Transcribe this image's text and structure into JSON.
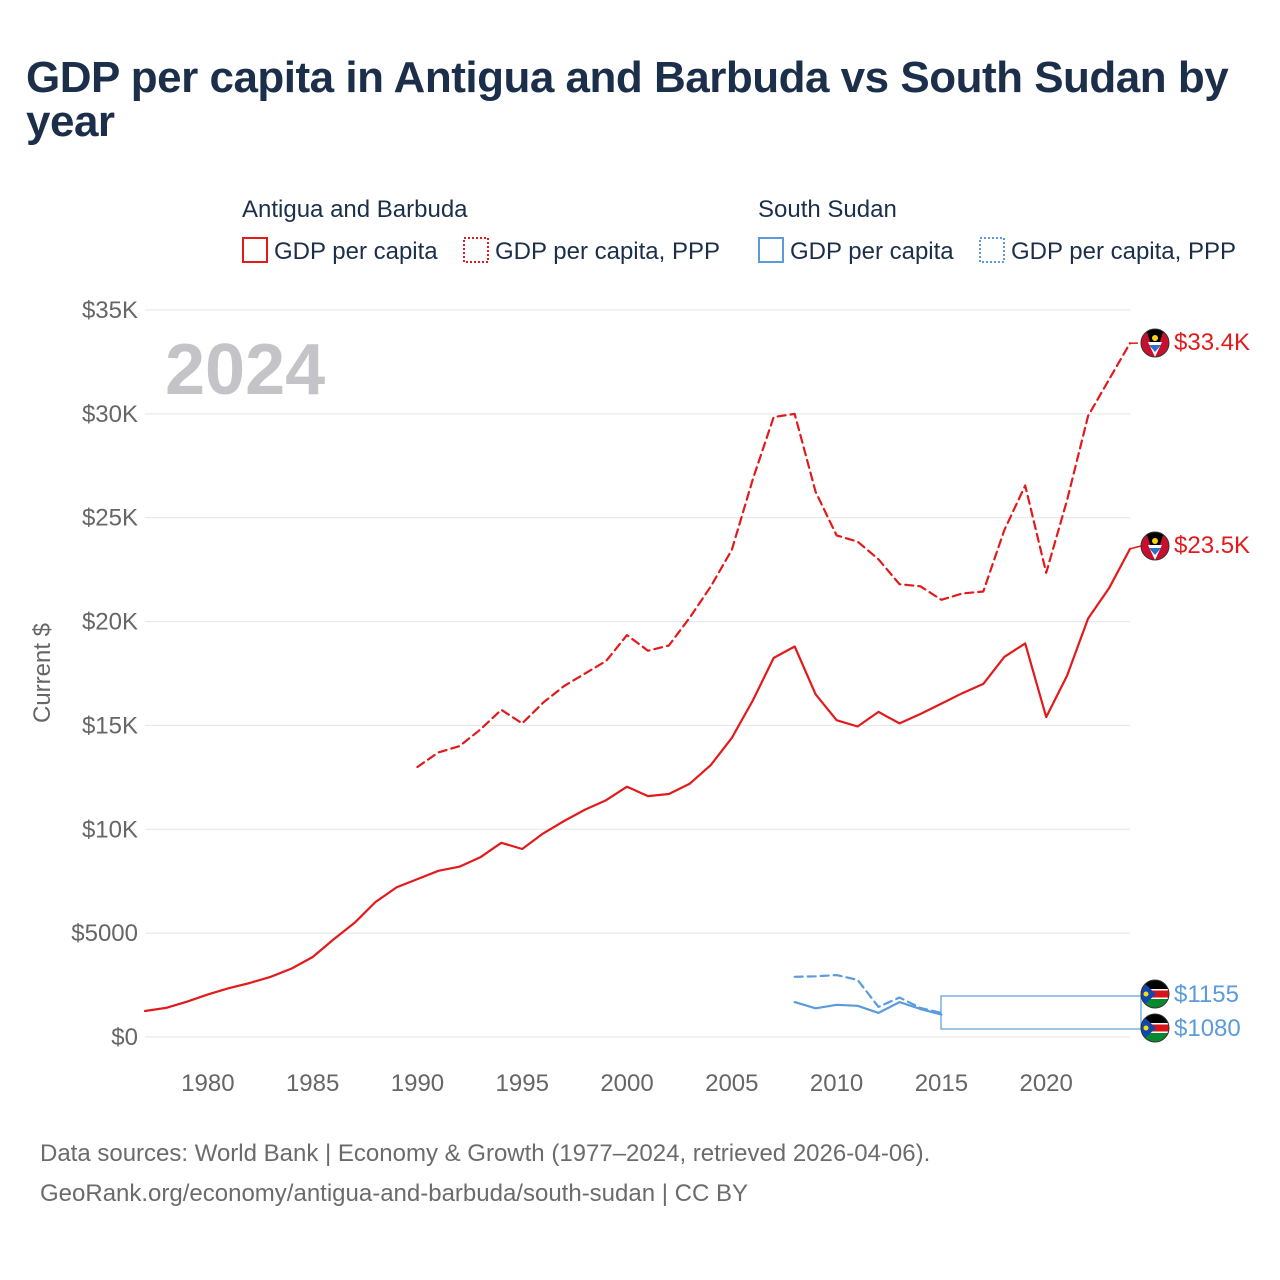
{
  "title": "GDP per capita in Antigua and Barbuda vs South Sudan by year",
  "year_watermark": "2024",
  "footer": {
    "line1": "Data sources: World Bank | Economy & Growth (1977–2024, retrieved 2026-04-06).",
    "line2": "GeoRank.org/economy/antigua-and-barbuda/south-sudan | CC BY"
  },
  "colors": {
    "antigua": "#e31a1c",
    "south_sudan": "#5b9bdc",
    "text_dark": "#1c2f4a",
    "axis_text": "#666666",
    "grid": "#e4e4e4",
    "watermark": "#c4c4c8"
  },
  "legend": {
    "groups": [
      {
        "country": "Antigua and Barbuda",
        "items": [
          "GDP per capita",
          "GDP per capita, PPP"
        ]
      },
      {
        "country": "South Sudan",
        "items": [
          "GDP per capita",
          "GDP per capita, PPP"
        ]
      }
    ]
  },
  "chart_data": {
    "type": "line",
    "title": "GDP per capita in Antigua and Barbuda vs South Sudan by year",
    "xlabel": "",
    "ylabel": "Current $",
    "xlim": [
      1977,
      2024
    ],
    "ylim": [
      0,
      35000
    ],
    "x_ticks": [
      1980,
      1985,
      1990,
      1995,
      2000,
      2005,
      2010,
      2015,
      2020
    ],
    "x_tick_labels": [
      "1980",
      "1985",
      "1990",
      "1995",
      "2000",
      "2005",
      "2010",
      "2015",
      "2020"
    ],
    "y_ticks": [
      0,
      5000,
      10000,
      15000,
      20000,
      25000,
      30000,
      35000
    ],
    "y_tick_labels": [
      "$0",
      "$5000",
      "$10K",
      "$15K",
      "$20K",
      "$25K",
      "$30K",
      "$35K"
    ],
    "grid": true,
    "legend_position": "top",
    "series": [
      {
        "name": "Antigua and Barbuda - GDP per capita",
        "country": "antigua",
        "style": "solid",
        "end_label": "$23.5K",
        "x": [
          1977,
          1978,
          1979,
          1980,
          1981,
          1982,
          1983,
          1984,
          1985,
          1986,
          1987,
          1988,
          1989,
          1990,
          1991,
          1992,
          1993,
          1994,
          1995,
          1996,
          1997,
          1998,
          1999,
          2000,
          2001,
          2002,
          2003,
          2004,
          2005,
          2006,
          2007,
          2008,
          2009,
          2010,
          2011,
          2012,
          2013,
          2014,
          2015,
          2016,
          2017,
          2018,
          2019,
          2020,
          2021,
          2022,
          2023,
          2024
        ],
        "values": [
          1250,
          1400,
          1700,
          2050,
          2350,
          2600,
          2900,
          3300,
          3850,
          4700,
          5500,
          6500,
          7200,
          7600,
          8000,
          8200,
          8650,
          9350,
          9050,
          9800,
          10400,
          10950,
          11400,
          12050,
          11600,
          11700,
          12200,
          13100,
          14400,
          16200,
          18250,
          18800,
          16500,
          15250,
          14950,
          15650,
          15100,
          15550,
          16050,
          16550,
          17000,
          18300,
          18950,
          15400,
          17400,
          20150,
          21600,
          23500
        ]
      },
      {
        "name": "Antigua and Barbuda - GDP per capita, PPP",
        "country": "antigua",
        "style": "dashed",
        "end_label": "$33.4K",
        "x": [
          1990,
          1991,
          1992,
          1993,
          1994,
          1995,
          1996,
          1997,
          1998,
          1999,
          2000,
          2001,
          2002,
          2003,
          2004,
          2005,
          2006,
          2007,
          2008,
          2009,
          2010,
          2011,
          2012,
          2013,
          2014,
          2015,
          2016,
          2017,
          2018,
          2019,
          2020,
          2021,
          2022,
          2023,
          2024
        ],
        "values": [
          13000,
          13700,
          14000,
          14800,
          15750,
          15100,
          16100,
          16900,
          17500,
          18100,
          19350,
          18600,
          18850,
          20200,
          21700,
          23450,
          26850,
          29850,
          30000,
          26250,
          24150,
          23850,
          23000,
          21800,
          21700,
          21050,
          21350,
          21450,
          24400,
          26550,
          22350,
          25850,
          29900,
          31650,
          33400
        ]
      },
      {
        "name": "South Sudan - GDP per capita",
        "country": "south_sudan",
        "style": "solid",
        "end_label": "$1080",
        "x": [
          2008,
          2009,
          2010,
          2011,
          2012,
          2013,
          2014,
          2015
        ],
        "values": [
          1680,
          1380,
          1550,
          1500,
          1160,
          1680,
          1350,
          1080
        ]
      },
      {
        "name": "South Sudan - GDP per capita, PPP",
        "country": "south_sudan",
        "style": "dashed",
        "end_label": "$1155",
        "x": [
          2008,
          2009,
          2010,
          2011,
          2012,
          2013,
          2014,
          2015
        ],
        "values": [
          2900,
          2920,
          2980,
          2750,
          1450,
          1900,
          1400,
          1155
        ]
      }
    ]
  }
}
